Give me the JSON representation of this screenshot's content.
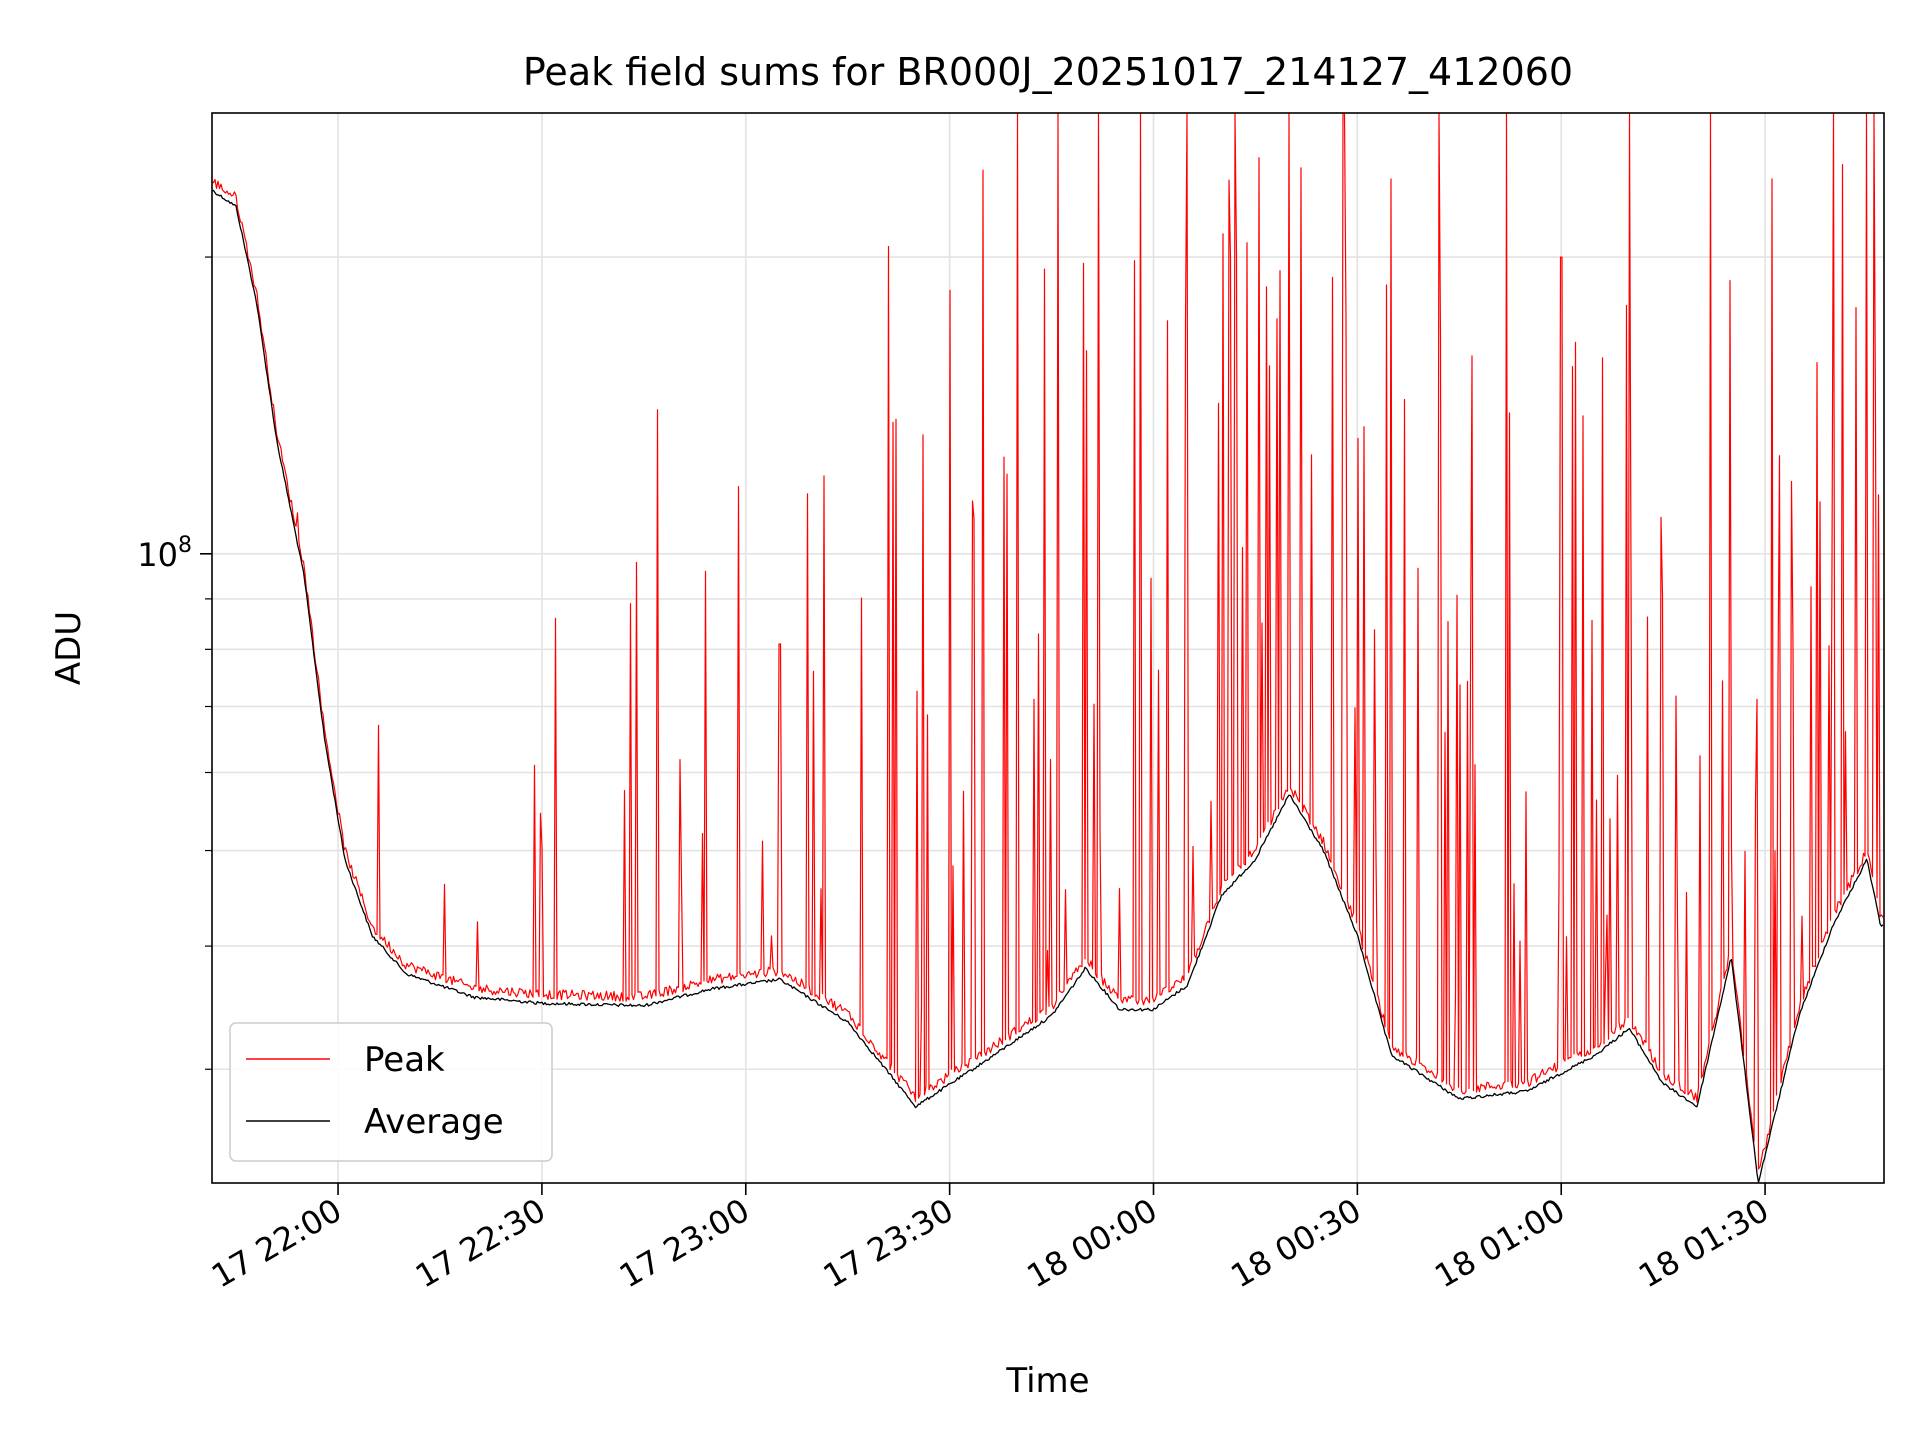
{
  "chart_data": {
    "type": "line",
    "title": "Peak field sums for BR000J_20251017_214127_412060",
    "xlabel": "Time",
    "ylabel": "ADU",
    "y_scale": "log",
    "ylim": [
      23000000,
      280000000
    ],
    "xlim": [
      "2025-10-17 21:41:27",
      "2025-10-18 01:47:30"
    ],
    "x_ticks": [
      {
        "t": "2025-10-17 22:00",
        "label": "17 22:00"
      },
      {
        "t": "2025-10-17 22:30",
        "label": "17 22:30"
      },
      {
        "t": "2025-10-17 23:00",
        "label": "17 23:00"
      },
      {
        "t": "2025-10-17 23:30",
        "label": "17 23:30"
      },
      {
        "t": "2025-10-18 00:00",
        "label": "18 00:00"
      },
      {
        "t": "2025-10-18 00:30",
        "label": "18 00:30"
      },
      {
        "t": "2025-10-18 01:00",
        "label": "18 01:00"
      },
      {
        "t": "2025-10-18 01:30",
        "label": "18 01:30"
      }
    ],
    "y_major_tick": {
      "value": 100000000,
      "label_base": "10",
      "label_exp": "8"
    },
    "y_minor_ticks": [
      30000000,
      40000000,
      50000000,
      60000000,
      70000000,
      80000000,
      90000000,
      200000000
    ],
    "grid": true,
    "legend_position": "lower-left",
    "series": [
      {
        "name": "Average",
        "color": "#000000",
        "x": [
          "2025-10-17 21:41",
          "2025-10-17 21:45",
          "2025-10-17 21:48",
          "2025-10-17 21:51",
          "2025-10-17 21:55",
          "2025-10-17 21:58",
          "2025-10-17 22:01",
          "2025-10-17 22:05",
          "2025-10-17 22:10",
          "2025-10-17 22:20",
          "2025-10-17 22:30",
          "2025-10-17 22:45",
          "2025-10-17 22:55",
          "2025-10-17 23:05",
          "2025-10-17 23:15",
          "2025-10-17 23:25",
          "2025-10-17 23:35",
          "2025-10-17 23:45",
          "2025-10-17 23:50",
          "2025-10-17 23:55",
          "2025-10-18 00:00",
          "2025-10-18 00:05",
          "2025-10-18 00:10",
          "2025-10-18 00:15",
          "2025-10-18 00:20",
          "2025-10-18 00:25",
          "2025-10-18 00:30",
          "2025-10-18 00:35",
          "2025-10-18 00:45",
          "2025-10-18 00:55",
          "2025-10-18 01:05",
          "01:10",
          "2025-10-18 01:15",
          "2025-10-18 01:20",
          "2025-10-18 01:25",
          "2025-10-18 01:29",
          "2025-10-18 01:35",
          "2025-10-18 01:40",
          "2025-10-18 01:45",
          "2025-10-18 01:47"
        ],
        "y": [
          235000000,
          225000000,
          180000000,
          130000000,
          95000000,
          65000000,
          49000000,
          41000000,
          37500000,
          35500000,
          35000000,
          34800000,
          36200000,
          37000000,
          33500000,
          27500000,
          30500000,
          34000000,
          38000000,
          34500000,
          34500000,
          36500000,
          45000000,
          49000000,
          57000000,
          50000000,
          41000000,
          31000000,
          28000000,
          28500000,
          31000000,
          33000000,
          29000000,
          27500000,
          39000000,
          23000000,
          34000000,
          42000000,
          49000000,
          42000000
        ]
      },
      {
        "name": "Peak",
        "color": "#ff0000",
        "spikes": [
          {
            "x": "2025-10-17 21:54",
            "y": 110000000
          },
          {
            "x": "2025-10-17 22:06",
            "y": 67000000
          },
          {
            "x": "2025-10-17 22:29",
            "y": 61000000
          },
          {
            "x": "2025-10-17 22:32",
            "y": 86000000
          },
          {
            "x": "2025-10-17 22:43",
            "y": 89000000
          },
          {
            "x": "2025-10-17 22:44",
            "y": 98000000
          },
          {
            "x": "2025-10-17 22:47",
            "y": 140000000
          },
          {
            "x": "2025-10-17 22:54",
            "y": 96000000
          },
          {
            "x": "2025-10-17 22:59",
            "y": 117000000
          },
          {
            "x": "2025-10-17 23:05",
            "y": 81000000
          },
          {
            "x": "2025-10-17 23:10",
            "y": 76000000
          },
          {
            "x": "2025-10-17 23:21",
            "y": 205000000
          },
          {
            "x": "2025-10-17 23:26",
            "y": 132000000
          },
          {
            "x": "2025-10-17 23:30",
            "y": 185000000
          },
          {
            "x": "2025-10-17 23:35",
            "y": 245000000
          },
          {
            "x": "2025-10-17 23:40",
            "y": 280000000
          },
          {
            "x": "2025-10-17 23:46",
            "y": 280000000
          },
          {
            "x": "2025-10-17 23:52",
            "y": 280000000
          },
          {
            "x": "2025-10-17 23:58",
            "y": 280000000
          },
          {
            "x": "2025-10-18 00:05",
            "y": 280000000
          },
          {
            "x": "2025-10-18 00:12",
            "y": 280000000
          },
          {
            "x": "2025-10-18 00:20",
            "y": 280000000
          },
          {
            "x": "2025-10-18 00:28",
            "y": 280000000
          },
          {
            "x": "2025-10-18 00:35",
            "y": 240000000
          },
          {
            "x": "2025-10-18 00:42",
            "y": 280000000
          },
          {
            "x": "2025-10-18 00:52",
            "y": 280000000
          },
          {
            "x": "2025-10-18 01:00",
            "y": 200000000
          },
          {
            "x": "2025-10-18 01:10",
            "y": 280000000
          },
          {
            "x": "2025-10-18 01:22",
            "y": 280000000
          },
          {
            "x": "2025-10-18 01:31",
            "y": 240000000
          },
          {
            "x": "2025-10-18 01:40",
            "y": 280000000
          },
          {
            "x": "2025-10-18 01:46",
            "y": 280000000
          }
        ]
      }
    ]
  }
}
